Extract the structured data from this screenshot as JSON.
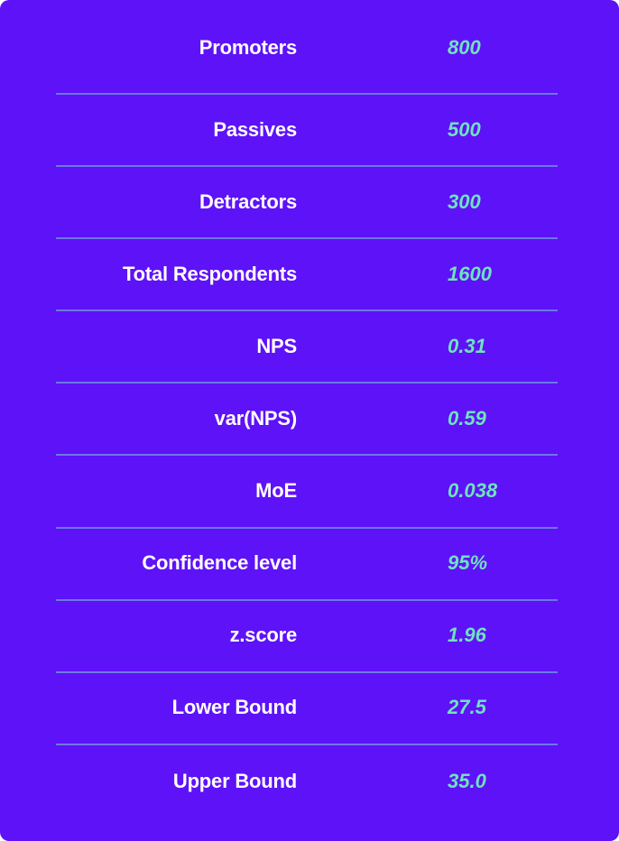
{
  "colors": {
    "background": "#5e12f7",
    "divider": "#6b79e6",
    "label": "#ffffff",
    "value": "#6fe3be"
  },
  "rows": [
    {
      "label": "Promoters",
      "value": "800"
    },
    {
      "label": "Passives",
      "value": "500"
    },
    {
      "label": "Detractors",
      "value": "300"
    },
    {
      "label": "Total Respondents",
      "value": "1600"
    },
    {
      "label": "NPS",
      "value": "0.31"
    },
    {
      "label": "var(NPS)",
      "value": "0.59"
    },
    {
      "label": "MoE",
      "value": "0.038"
    },
    {
      "label": "Confidence level",
      "value": "95%"
    },
    {
      "label": "z.score",
      "value": "1.96"
    },
    {
      "label": "Lower Bound",
      "value": "27.5"
    },
    {
      "label": "Upper Bound",
      "value": "35.0"
    }
  ]
}
